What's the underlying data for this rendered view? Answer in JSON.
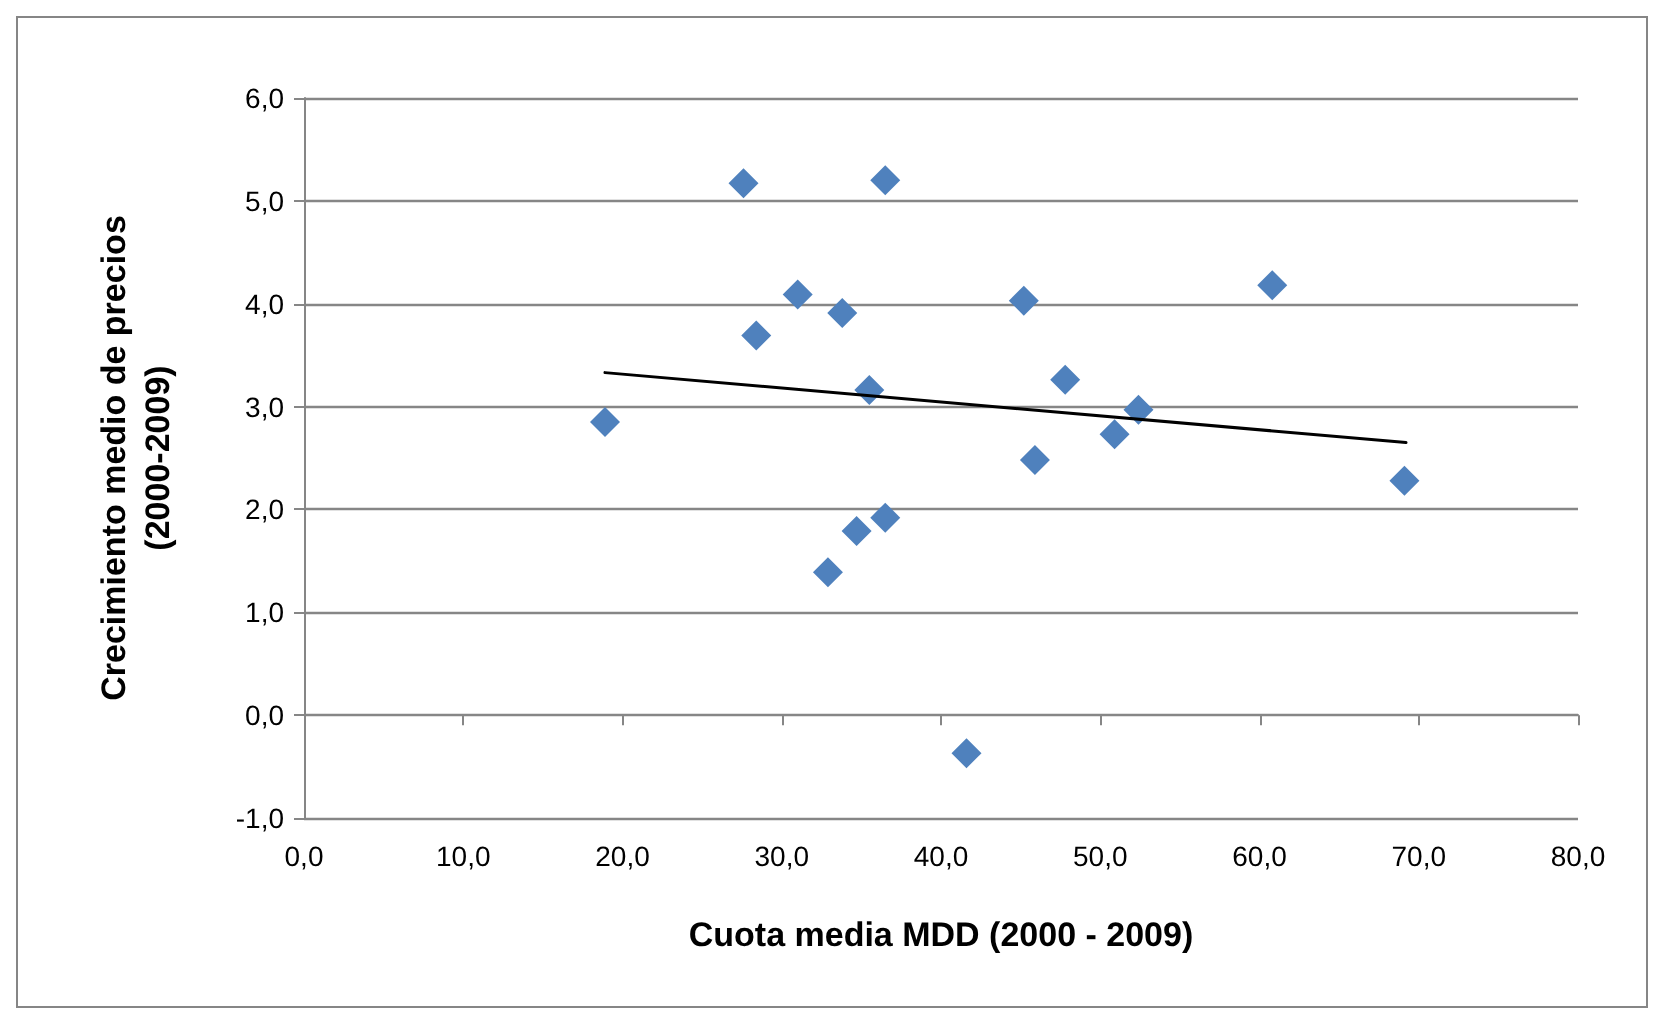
{
  "chart_data": {
    "type": "scatter",
    "xlabel": "Cuota media MDD (2000 - 2009)",
    "ylabel": "Crecimiento medio de precios\n(2000-2009)",
    "xlim": [
      0,
      80
    ],
    "xticks": [
      {
        "value": 0,
        "label": "0,0"
      },
      {
        "value": 10,
        "label": "10,0"
      },
      {
        "value": 20,
        "label": "20,0"
      },
      {
        "value": 30,
        "label": "30,0"
      },
      {
        "value": 40,
        "label": "40,0"
      },
      {
        "value": 50,
        "label": "50,0"
      },
      {
        "value": 60,
        "label": "60,0"
      },
      {
        "value": 70,
        "label": "70,0"
      },
      {
        "value": 80,
        "label": "80,0"
      }
    ],
    "ylim": [
      -1,
      6
    ],
    "yticks": [
      {
        "value": -1,
        "label": "-1,0"
      },
      {
        "value": 0,
        "label": "0,0"
      },
      {
        "value": 1,
        "label": "1,0"
      },
      {
        "value": 2,
        "label": "2,0"
      },
      {
        "value": 3,
        "label": "3,0"
      },
      {
        "value": 4,
        "label": "4,0"
      },
      {
        "value": 5,
        "label": "5,0"
      },
      {
        "value": 6,
        "label": "6,0"
      }
    ],
    "grid": "y",
    "series": [
      {
        "color": "#4f81bd",
        "marker": "diamond",
        "x": [
          18.9,
          27.6,
          36.5,
          31.0,
          28.4,
          33.8,
          35.5,
          45.2,
          47.8,
          52.4,
          50.9,
          45.9,
          60.8,
          69.1,
          36.5,
          34.7,
          32.9,
          41.6
        ],
        "values": [
          2.85,
          5.17,
          5.2,
          4.09,
          3.69,
          3.91,
          3.16,
          4.03,
          3.26,
          2.97,
          2.73,
          2.48,
          4.18,
          2.28,
          1.92,
          1.79,
          1.39,
          -0.37
        ]
      },
      {
        "type": "line",
        "color": "#000000",
        "marker": "none",
        "line_style": "solid",
        "x": [
          18.9,
          69.2
        ],
        "values": [
          3.33,
          2.65
        ]
      }
    ]
  }
}
